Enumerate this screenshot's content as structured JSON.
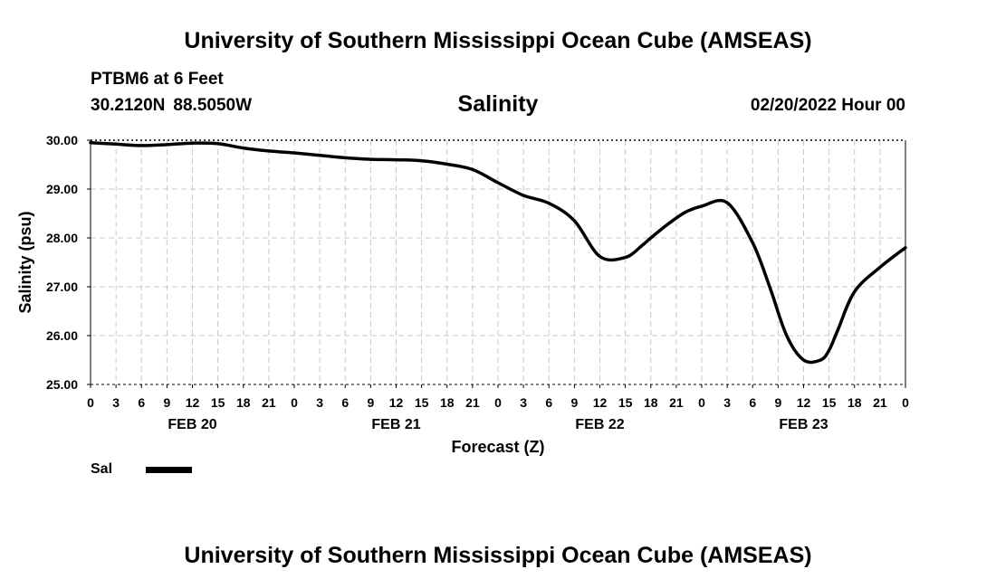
{
  "header": {
    "title": "University of Southern Mississippi Ocean Cube (AMSEAS)",
    "station": "PTBM6 at 6 Feet",
    "lat": "30.2120N",
    "lon": "88.5050W",
    "chart_title": "Salinity",
    "datetime": "02/20/2022 Hour 00"
  },
  "footer": {
    "title": "University of Southern Mississippi Ocean Cube (AMSEAS)"
  },
  "legend": {
    "label": "Sal"
  },
  "colors": {
    "line": "#000000",
    "grid": "#c8c8c8"
  },
  "chart_data": {
    "type": "line",
    "title": "Salinity",
    "xlabel": "Forecast (Z)",
    "ylabel": "Salinity (psu)",
    "xlim": [
      0,
      96
    ],
    "ylim": [
      25,
      30
    ],
    "grid": true,
    "y_ticks": [
      25,
      26,
      27,
      28,
      29,
      30
    ],
    "y_tick_labels": [
      "25.00",
      "26.00",
      "27.00",
      "28.00",
      "29.00",
      "30.00"
    ],
    "x_tick_labels": [
      "0",
      "3",
      "6",
      "9",
      "12",
      "15",
      "18",
      "21",
      "0",
      "3",
      "6",
      "9",
      "12",
      "15",
      "18",
      "21",
      "0",
      "3",
      "6",
      "9",
      "12",
      "15",
      "18",
      "21",
      "0",
      "3",
      "6",
      "9",
      "12",
      "15",
      "18",
      "21",
      "0"
    ],
    "day_labels": [
      {
        "label": "FEB 20",
        "hour": 12
      },
      {
        "label": "FEB 21",
        "hour": 36
      },
      {
        "label": "FEB 22",
        "hour": 60
      },
      {
        "label": "FEB 23",
        "hour": 84
      }
    ],
    "series": [
      {
        "name": "Sal",
        "x": [
          0,
          3,
          6,
          9,
          12,
          15,
          18,
          21,
          24,
          27,
          30,
          33,
          36,
          39,
          42,
          45,
          48,
          51,
          54,
          57,
          60,
          63,
          65,
          66,
          68,
          70,
          72,
          75,
          78,
          80,
          82,
          84,
          86,
          87,
          88,
          90,
          93,
          96
        ],
        "y": [
          29.95,
          29.92,
          29.89,
          29.91,
          29.94,
          29.93,
          29.84,
          29.78,
          29.74,
          29.69,
          29.64,
          29.61,
          29.6,
          29.58,
          29.51,
          29.4,
          29.13,
          28.87,
          28.71,
          28.35,
          27.62,
          27.6,
          27.85,
          28.0,
          28.28,
          28.52,
          28.65,
          28.72,
          27.9,
          27.0,
          26.0,
          25.5,
          25.5,
          25.7,
          26.1,
          26.9,
          27.4,
          27.8
        ]
      }
    ]
  }
}
